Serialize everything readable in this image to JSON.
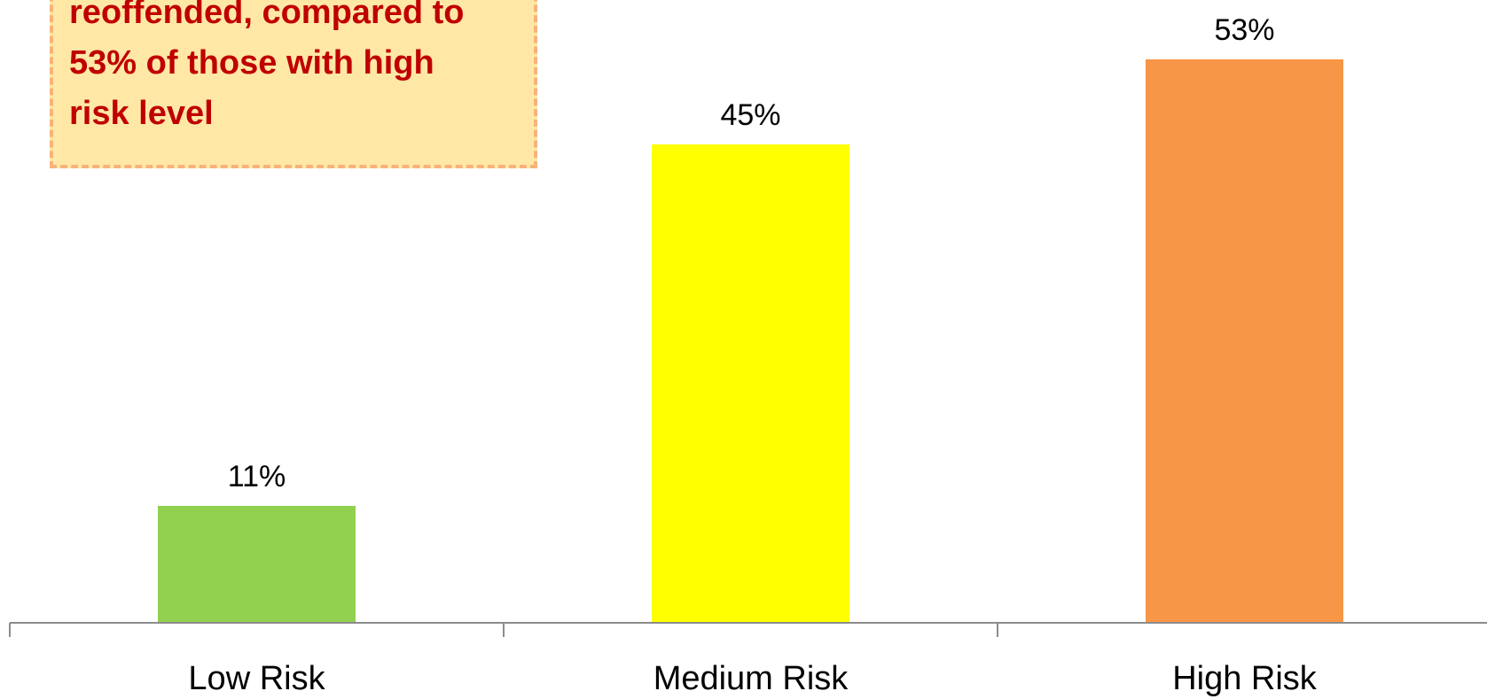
{
  "chart_data": {
    "type": "bar",
    "categories": [
      "Low Risk",
      "Medium Risk",
      "High Risk"
    ],
    "values": [
      11,
      45,
      53
    ],
    "value_labels": [
      "11%",
      "45%",
      "53%"
    ],
    "unit": "%",
    "ylim": [
      0,
      53
    ],
    "grid": false,
    "legend": "none",
    "bar_colors": [
      "#92d050",
      "#ffff00",
      "#f79646"
    ],
    "annotation": {
      "lines": [
        "reoffended, compared to",
        "53% of those with high",
        "risk level"
      ],
      "text_color": "#c00000",
      "background_color": "#ffe8a6",
      "border_color": "#f7b37a"
    }
  }
}
